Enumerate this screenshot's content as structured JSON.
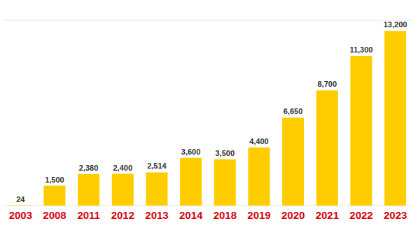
{
  "chart_data": {
    "type": "bar",
    "categories": [
      "2003",
      "2008",
      "2011",
      "2012",
      "2013",
      "2014",
      "2018",
      "2019",
      "2020",
      "2021",
      "2022",
      "2023"
    ],
    "values": [
      24,
      1500,
      2380,
      2400,
      2514,
      3600,
      3500,
      4400,
      6650,
      8700,
      11300,
      13200
    ],
    "value_labels": [
      "24",
      "1,500",
      "2,380",
      "2,400",
      "2,514",
      "3,600",
      "3,500",
      "4,400",
      "6,650",
      "8,700",
      "11,300",
      "13,200"
    ],
    "color": "#ffcc00",
    "ylim": [
      0,
      14000
    ],
    "yticks": [
      0,
      2000,
      4000,
      6000,
      8000,
      10000,
      12000,
      14000
    ],
    "grid": true,
    "data_labels": true,
    "tick_labels": "x"
  }
}
